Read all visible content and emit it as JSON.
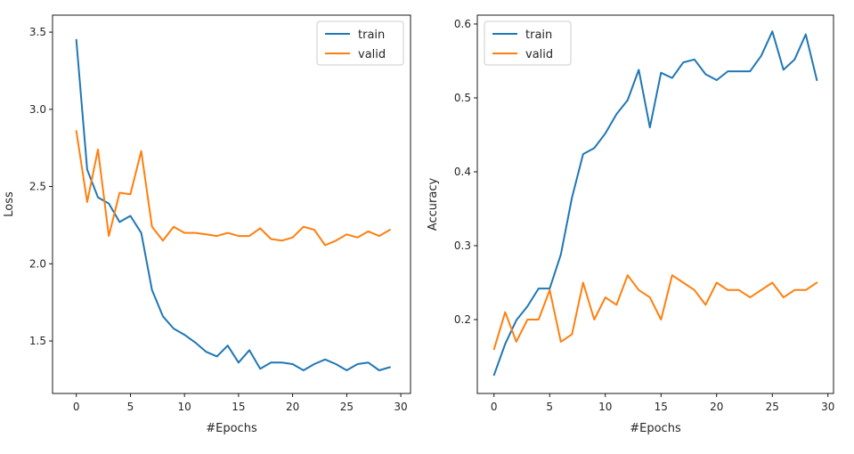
{
  "chart_data": [
    {
      "type": "line",
      "title": "",
      "xlabel": "#Epochs",
      "ylabel": "Loss",
      "xlim": [
        -2.2,
        30.9
      ],
      "ylim": [
        1.16,
        3.61
      ],
      "xticks": [
        0,
        5,
        10,
        15,
        20,
        25,
        30
      ],
      "yticks": [
        1.5,
        2.0,
        2.5,
        3.0,
        3.5
      ],
      "ytick_labels": [
        "1.5",
        "2.0",
        "2.5",
        "3.0",
        "3.5"
      ],
      "grid": false,
      "legend_position": "top-right",
      "x": [
        0,
        1,
        2,
        3,
        4,
        5,
        6,
        7,
        8,
        9,
        10,
        11,
        12,
        13,
        14,
        15,
        16,
        17,
        18,
        19,
        20,
        21,
        22,
        23,
        24,
        25,
        26,
        27,
        28,
        29
      ],
      "series": [
        {
          "name": "train",
          "color": "#1f77b4",
          "values": [
            3.45,
            2.61,
            2.43,
            2.39,
            2.27,
            2.31,
            2.2,
            1.83,
            1.66,
            1.58,
            1.54,
            1.49,
            1.43,
            1.4,
            1.47,
            1.36,
            1.44,
            1.32,
            1.36,
            1.36,
            1.35,
            1.31,
            1.35,
            1.38,
            1.35,
            1.31,
            1.35,
            1.36,
            1.31,
            1.33
          ]
        },
        {
          "name": "valid",
          "color": "#ff7f0e",
          "values": [
            2.86,
            2.4,
            2.74,
            2.18,
            2.46,
            2.45,
            2.73,
            2.24,
            2.15,
            2.24,
            2.2,
            2.2,
            2.19,
            2.18,
            2.2,
            2.18,
            2.18,
            2.23,
            2.16,
            2.15,
            2.17,
            2.24,
            2.22,
            2.12,
            2.15,
            2.19,
            2.17,
            2.21,
            2.18,
            2.22
          ]
        }
      ]
    },
    {
      "type": "line",
      "title": "",
      "xlabel": "#Epochs",
      "ylabel": "Accuracy",
      "xlim": [
        -1.5,
        30.5
      ],
      "ylim": [
        0.1,
        0.612
      ],
      "xticks": [
        0,
        5,
        10,
        15,
        20,
        25,
        30
      ],
      "yticks": [
        0.2,
        0.3,
        0.4,
        0.5,
        0.6
      ],
      "ytick_labels": [
        "0.2",
        "0.3",
        "0.4",
        "0.5",
        "0.6"
      ],
      "grid": false,
      "legend_position": "top-left",
      "x": [
        0,
        1,
        2,
        3,
        4,
        5,
        6,
        7,
        8,
        9,
        10,
        11,
        12,
        13,
        14,
        15,
        16,
        17,
        18,
        19,
        20,
        21,
        22,
        23,
        24,
        25,
        26,
        27,
        28,
        29
      ],
      "series": [
        {
          "name": "train",
          "color": "#1f77b4",
          "values": [
            0.125,
            0.167,
            0.199,
            0.218,
            0.242,
            0.242,
            0.288,
            0.365,
            0.424,
            0.432,
            0.452,
            0.478,
            0.497,
            0.538,
            0.46,
            0.534,
            0.527,
            0.548,
            0.552,
            0.532,
            0.524,
            0.536,
            0.536,
            0.536,
            0.557,
            0.59,
            0.538,
            0.552,
            0.586,
            0.524
          ]
        },
        {
          "name": "valid",
          "color": "#ff7f0e",
          "values": [
            0.16,
            0.21,
            0.17,
            0.2,
            0.2,
            0.24,
            0.17,
            0.18,
            0.25,
            0.2,
            0.23,
            0.22,
            0.26,
            0.24,
            0.23,
            0.2,
            0.26,
            0.25,
            0.24,
            0.22,
            0.25,
            0.24,
            0.24,
            0.23,
            0.24,
            0.25,
            0.23,
            0.24,
            0.24,
            0.25
          ]
        }
      ]
    }
  ]
}
